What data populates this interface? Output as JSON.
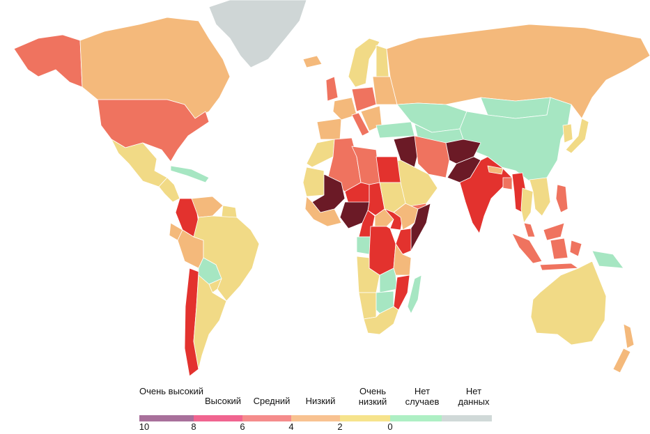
{
  "legend": {
    "items": [
      {
        "label": "Очень высокий",
        "color": "#a8709b"
      },
      {
        "label": "Высокий",
        "color": "#f06590"
      },
      {
        "label": "Средний",
        "color": "#f58c8c"
      },
      {
        "label": "Низкий",
        "color": "#f8c291"
      },
      {
        "label": "Очень низкий",
        "color": "#f6e38c"
      },
      {
        "label": "Нет случаев",
        "color": "#aeefc4"
      },
      {
        "label": "Нет данных",
        "color": "#d0d9d8"
      }
    ],
    "ticks": [
      "10",
      "8",
      "6",
      "4",
      "2",
      "0"
    ]
  },
  "map_colors": {
    "very_high": "#6b1a26",
    "high": "#e3322e",
    "medium": "#ef735f",
    "low": "#f4b97b",
    "very_low": "#f1da86",
    "none": "#a6e6c2",
    "no_data": "#cfd6d6"
  },
  "regions": {
    "greenland": "no_data",
    "canada": "low",
    "alaska": "medium",
    "usa": "medium",
    "mexico": "very_low",
    "central_america": "very_low",
    "caribbean": "none",
    "colombia": "high",
    "venezuela": "low",
    "guianas": "very_low",
    "brazil": "very_low",
    "peru": "low",
    "ecuador": "low",
    "bolivia": "none",
    "paraguay": "very_low",
    "chile": "high",
    "argentina": "very_low",
    "iceland": "low",
    "scandinavia": "very_low",
    "finland": "very_low",
    "uk": "medium",
    "west_europe": "low",
    "central_europe": "medium",
    "east_europe": "low",
    "iberia": "low",
    "italy": "medium",
    "balkans": "low",
    "turkey": "none",
    "russia": "low",
    "kazakhstan": "none",
    "central_asia": "none",
    "mongolia": "none",
    "china": "none",
    "korea": "very_low",
    "japan": "very_low",
    "iraq_syria": "very_high",
    "iran": "medium",
    "afghanistan": "very_high",
    "pakistan": "very_high",
    "arabia": "very_low",
    "yemen": "medium",
    "india": "high",
    "nepal": "low",
    "bangladesh": "medium",
    "myanmar": "high",
    "indochina": "very_low",
    "thailand": "very_low",
    "philippines": "medium",
    "malaysia": "medium",
    "indonesia": "medium",
    "png": "none",
    "australia": "very_low",
    "new_zealand": "low",
    "morocco": "very_low",
    "algeria": "medium",
    "libya": "medium",
    "egypt": "high",
    "mauritania": "very_low",
    "mali": "very_high",
    "niger": "high",
    "chad": "high",
    "sudan": "very_low",
    "west_africa": "low",
    "nigeria": "very_high",
    "cameroon": "high",
    "car": "low",
    "south_sudan": "high",
    "ethiopia": "low",
    "somalia": "very_high",
    "kenya": "high",
    "gabon_congo": "none",
    "drc": "high",
    "tanzania": "low",
    "angola": "very_low",
    "zambia": "none",
    "mozambique": "high",
    "namibia": "very_low",
    "botswana": "none",
    "south_africa": "very_low",
    "madagascar": "none"
  }
}
